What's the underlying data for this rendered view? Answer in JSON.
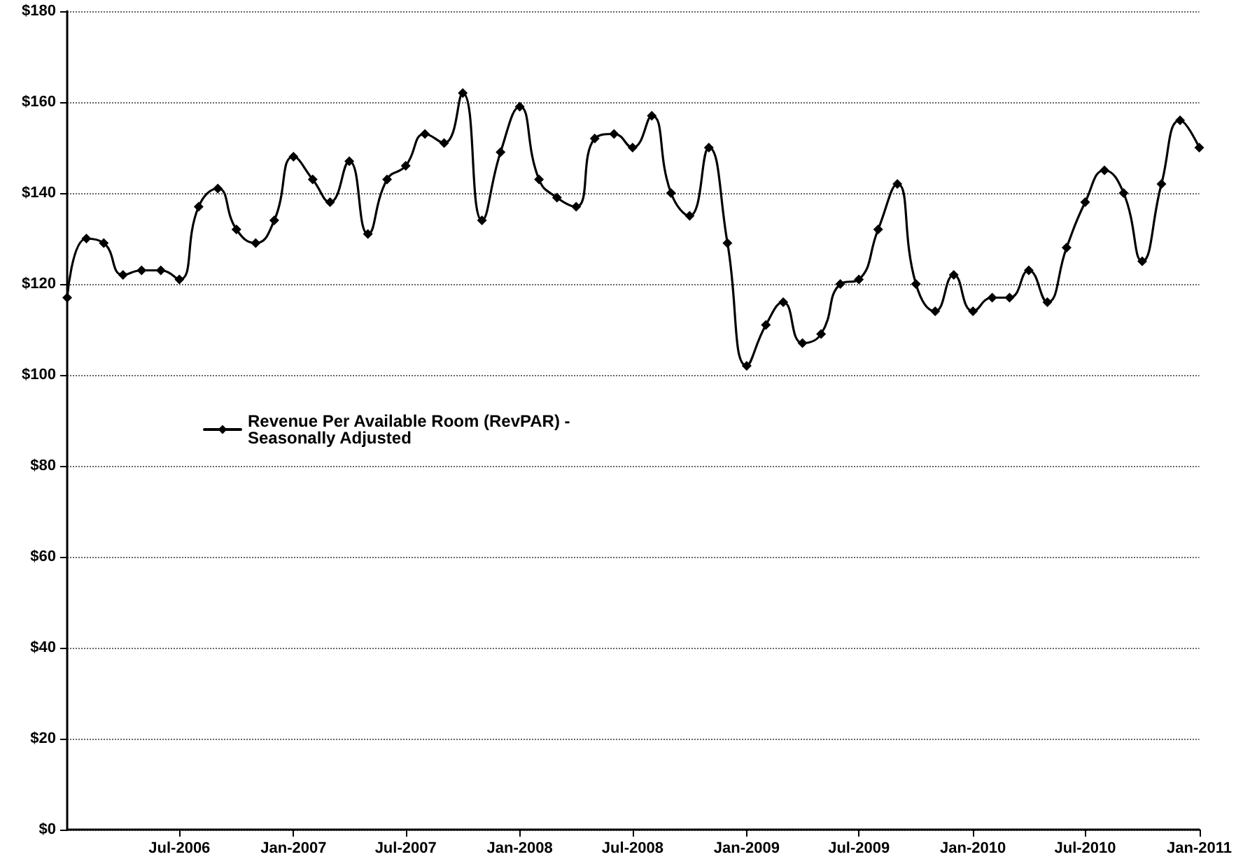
{
  "chart_data": {
    "type": "line",
    "x": [
      "2006-01",
      "2006-02",
      "2006-03",
      "2006-04",
      "2006-05",
      "2006-06",
      "2006-07",
      "2006-08",
      "2006-09",
      "2006-10",
      "2006-11",
      "2006-12",
      "2007-01",
      "2007-02",
      "2007-03",
      "2007-04",
      "2007-05",
      "2007-06",
      "2007-07",
      "2007-08",
      "2007-09",
      "2007-10",
      "2007-11",
      "2007-12",
      "2008-01",
      "2008-02",
      "2008-03",
      "2008-04",
      "2008-05",
      "2008-06",
      "2008-07",
      "2008-08",
      "2008-09",
      "2008-10",
      "2008-11",
      "2008-12",
      "2009-01",
      "2009-02",
      "2009-03",
      "2009-04",
      "2009-05",
      "2009-06",
      "2009-07",
      "2009-08",
      "2009-09",
      "2009-10",
      "2009-11",
      "2009-12",
      "2010-01",
      "2010-02",
      "2010-03",
      "2010-04",
      "2010-05",
      "2010-06",
      "2010-07",
      "2010-08",
      "2010-09",
      "2010-10",
      "2010-11",
      "2010-12",
      "2011-01"
    ],
    "series": [
      {
        "name": "Revenue Per Available Room (RevPAR) - Seasonally Adjusted",
        "color": "#000000",
        "values": [
          117,
          130,
          129,
          122,
          123,
          123,
          121,
          137,
          141,
          132,
          129,
          134,
          148,
          143,
          138,
          147,
          131,
          143,
          146,
          153,
          151,
          162,
          134,
          149,
          159,
          143,
          139,
          137,
          152,
          153,
          150,
          157,
          140,
          135,
          150,
          129,
          102,
          111,
          116,
          107,
          109,
          120,
          121,
          132,
          142,
          120,
          114,
          122,
          114,
          117,
          117,
          123,
          116,
          128,
          138,
          145,
          140,
          125,
          142,
          156,
          150
        ]
      }
    ],
    "xlim": [
      "2006-01",
      "2011-01"
    ],
    "xticks": [
      {
        "value": "2006-07",
        "label": "Jul-2006"
      },
      {
        "value": "2007-01",
        "label": "Jan-2007"
      },
      {
        "value": "2007-07",
        "label": "Jul-2007"
      },
      {
        "value": "2008-01",
        "label": "Jan-2008"
      },
      {
        "value": "2008-07",
        "label": "Jul-2008"
      },
      {
        "value": "2009-01",
        "label": "Jan-2009"
      },
      {
        "value": "2009-07",
        "label": "Jul-2009"
      },
      {
        "value": "2010-01",
        "label": "Jan-2010"
      },
      {
        "value": "2010-07",
        "label": "Jul-2010"
      },
      {
        "value": "2011-01",
        "label": "Jan-2011"
      }
    ],
    "ylim": [
      0,
      180
    ],
    "yticks": [
      {
        "value": 0,
        "label": "$0"
      },
      {
        "value": 20,
        "label": "$20"
      },
      {
        "value": 40,
        "label": "$40"
      },
      {
        "value": 60,
        "label": "$60"
      },
      {
        "value": 80,
        "label": "$80"
      },
      {
        "value": 100,
        "label": "$100"
      },
      {
        "value": 120,
        "label": "$120"
      },
      {
        "value": 140,
        "label": "$140"
      },
      {
        "value": 160,
        "label": "$160"
      },
      {
        "value": 180,
        "label": "$180"
      }
    ],
    "grid": "y",
    "legend": "left",
    "marker": "diamond",
    "line_style": "solid"
  }
}
